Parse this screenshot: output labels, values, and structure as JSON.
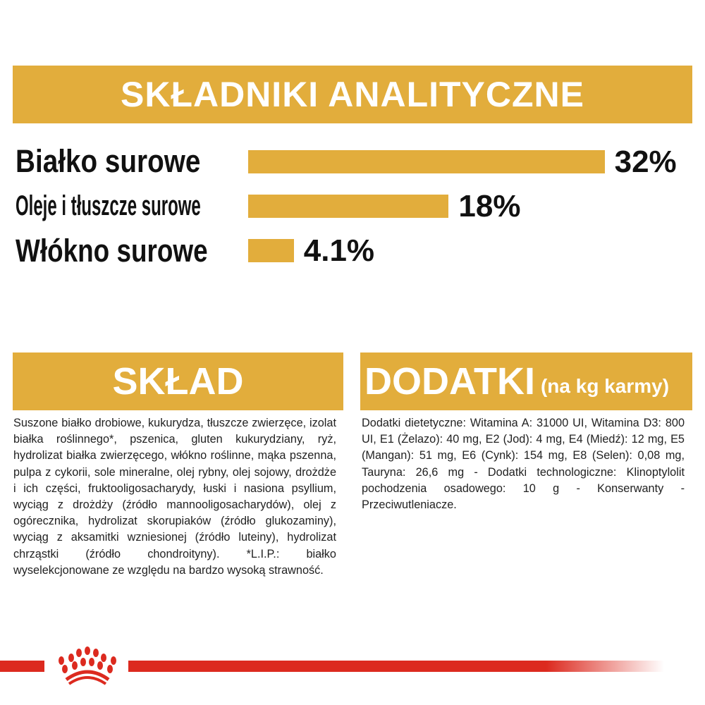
{
  "header": {
    "title": "SKŁADNIKI ANALITYCZNE"
  },
  "colors": {
    "gold": "#e2ad3c",
    "red": "#dc2a1f",
    "text": "#222222"
  },
  "chart_data": {
    "type": "bar",
    "orientation": "horizontal",
    "title": "SKŁADNIKI ANALITYCZNE",
    "categories": [
      "Białko surowe",
      "Oleje i tłuszcze surowe",
      "Włókno surowe"
    ],
    "values": [
      32,
      18,
      4.1
    ],
    "value_labels": [
      "32%",
      "18%",
      "4.1%"
    ],
    "unit": "%",
    "grid": false
  },
  "sklad": {
    "title": "SKŁAD",
    "text": "Suszone białko drobiowe, kukurydza, tłuszcze zwierzęce, izolat białka roślinnego*, pszenica, gluten kukurydziany, ryż, hydrolizat białka zwierzęcego, włókno roślinne, mąka pszenna, pulpa z cykorii, sole mineralne, olej rybny, olej sojowy, drożdże i ich części, fruktooligosacharydy, łuski i nasiona psyllium, wyciąg z drożdży (źródło mannooligosacharydów), olej z ogórecznika, hydrolizat skorupiaków (źródło glukozaminy), wyciąg z aksamitki wzniesionej (źródło luteiny), hydrolizat chrząstki (źródło chondroityny). *L.I.P.: białko wyselekcjonowane ze względu na bardzo wysoką strawność."
  },
  "dodatki": {
    "title": "DODATKI",
    "subtitle": "(na kg karmy)",
    "text": "Dodatki dietetyczne: Witamina A: 31000 UI, Witamina D3: 800 UI, E1 (Żelazo): 40 mg, E2 (Jod): 4 mg, E4 (Miedź): 12 mg, E5 (Mangan): 51 mg, E6 (Cynk): 154 mg, E8 (Selen): 0,08 mg, Tauryna: 26,6 mg - Dodatki technologiczne: Klinoptylolit pochodzenia osadowego: 10 g - Konserwanty - Przeciwutleniacze."
  },
  "logo": {
    "name": "royal-canin-crown-logo"
  }
}
